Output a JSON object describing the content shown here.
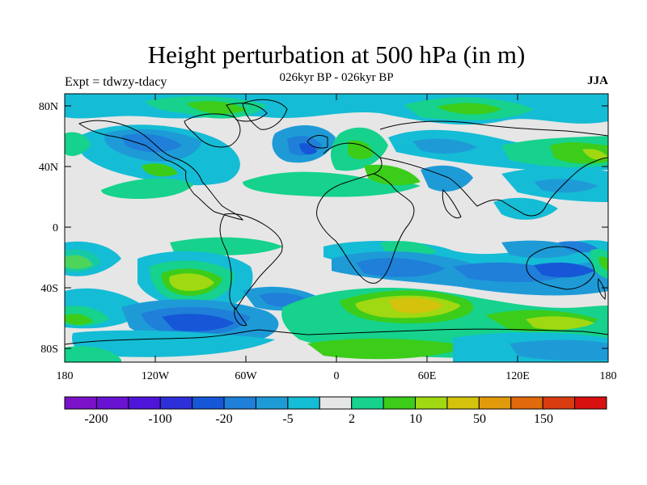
{
  "figure": {
    "title": "Height perturbation at 500 hPa (in m)",
    "subtitle": "026kyr BP - 026kyr BP",
    "left_label": "Expt = tdwzy-tdacy",
    "right_label": "JJA"
  },
  "axes": {
    "y_ticks": [
      "80N",
      "40N",
      "0",
      "40S",
      "80S"
    ],
    "x_ticks": [
      "180",
      "120W",
      "60W",
      "0",
      "60E",
      "120E",
      "180"
    ]
  },
  "colorbar": {
    "colors": [
      "#7b12c8",
      "#6a12d2",
      "#4f14d9",
      "#2d2fd9",
      "#1557d6",
      "#1f7fd9",
      "#1e9bd7",
      "#15bcd5",
      "#e6e6e6",
      "#16d28c",
      "#3ccc1a",
      "#a0d812",
      "#d4c20c",
      "#e09a0c",
      "#e06a0c",
      "#d83c10",
      "#d81010"
    ],
    "labels": [
      "-200",
      "-100",
      "-20",
      "-5",
      "2",
      "10",
      "50",
      "150"
    ]
  },
  "palette": {
    "land_outline": "#000000",
    "background_field": "#e6e6e6"
  }
}
